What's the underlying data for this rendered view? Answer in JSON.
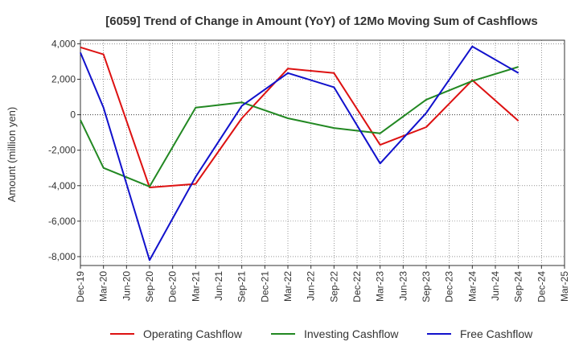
{
  "chart_data": {
    "type": "line",
    "title": "[6059]  Trend of Change in Amount (YoY) of 12Mo Moving Sum of Cashflows",
    "xlabel": "",
    "ylabel": "Amount (million yen)",
    "ylim": [
      -8500,
      4200
    ],
    "yticks": [
      4000,
      2000,
      0,
      -2000,
      -4000,
      -6000,
      -8000
    ],
    "ytick_labels": [
      "4,000",
      "2,000",
      "0",
      "-2,000",
      "-4,000",
      "-6,000",
      "-8,000"
    ],
    "categories": [
      "Dec-19",
      "Mar-20",
      "Jun-20",
      "Sep-20",
      "Dec-20",
      "Mar-21",
      "Jun-21",
      "Sep-21",
      "Dec-21",
      "Mar-22",
      "Jun-22",
      "Sep-22",
      "Dec-22",
      "Mar-23",
      "Jun-23",
      "Sep-23",
      "Dec-23",
      "Mar-24",
      "Jun-24",
      "Sep-24",
      "Dec-24",
      "Mar-25"
    ],
    "grid": true,
    "legend_position": "bottom",
    "series": [
      {
        "name": "Operating Cashflow",
        "color": "#dd1111",
        "values": [
          3800,
          3400,
          null,
          -4100,
          null,
          -3900,
          null,
          -200,
          null,
          2600,
          null,
          2350,
          null,
          -1700,
          null,
          -700,
          null,
          1950,
          null,
          -350,
          null,
          null
        ]
      },
      {
        "name": "Investing Cashflow",
        "color": "#228822",
        "values": [
          -300,
          -3000,
          null,
          -4050,
          null,
          400,
          null,
          700,
          null,
          -200,
          null,
          -750,
          null,
          -1050,
          null,
          850,
          null,
          1900,
          null,
          2700,
          null,
          null
        ]
      },
      {
        "name": "Free Cashflow",
        "color": "#1111cc",
        "values": [
          3500,
          400,
          null,
          -8200,
          null,
          -3500,
          null,
          500,
          null,
          2350,
          null,
          1550,
          null,
          -2750,
          null,
          100,
          null,
          3850,
          null,
          2350,
          null,
          null
        ]
      }
    ]
  }
}
